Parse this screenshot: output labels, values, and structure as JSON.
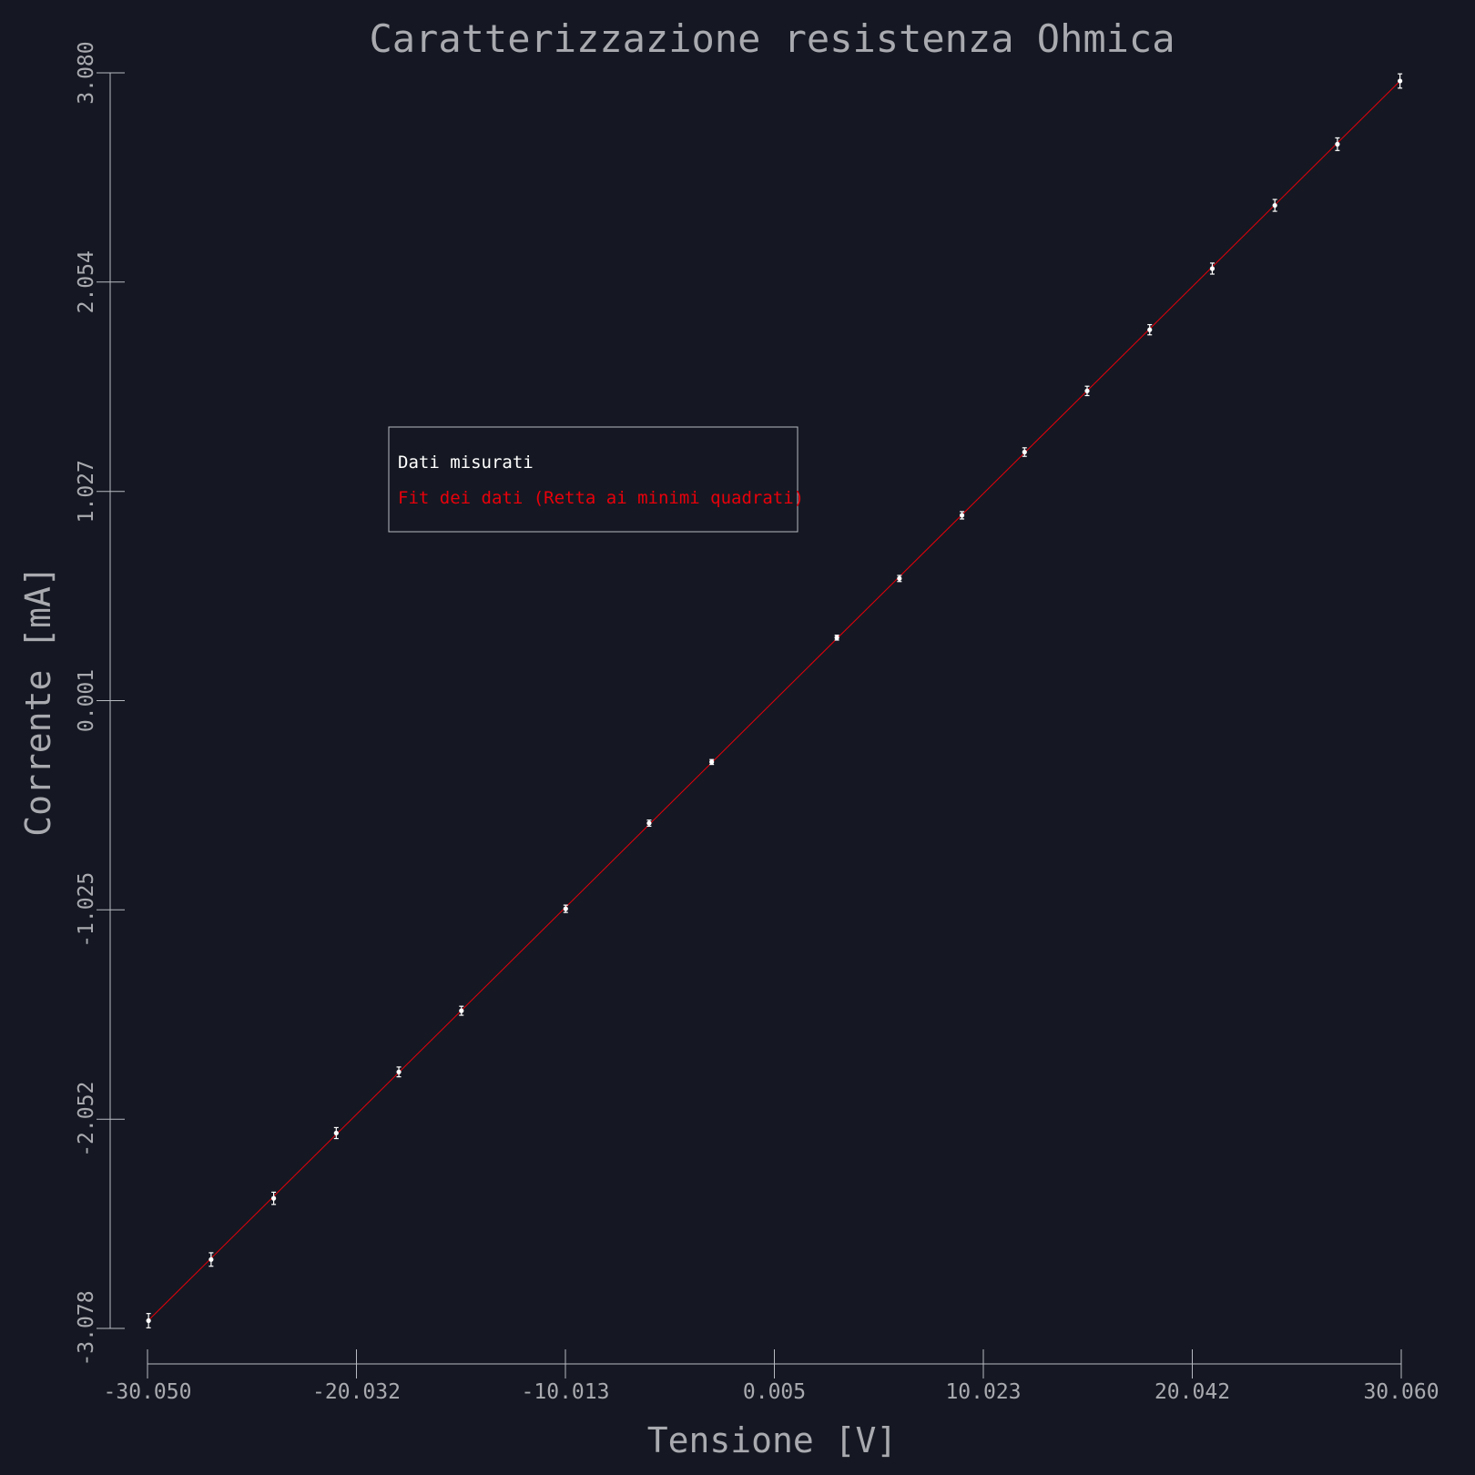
{
  "chart_data": {
    "type": "scatter",
    "title": "Caratterizzazione resistenza Ohmica",
    "xlabel": "Tensione [V]",
    "ylabel": "Corrente [mA]",
    "xlim": [
      -30.05,
      30.06
    ],
    "ylim": [
      -3.078,
      3.08
    ],
    "x_ticks": [
      -30.05,
      -20.032,
      -10.013,
      0.005,
      10.023,
      20.042,
      30.06
    ],
    "x_tick_labels": [
      "-30.050",
      "-20.032",
      "-10.013",
      "0.005",
      "10.023",
      "20.042",
      "30.060"
    ],
    "y_ticks": [
      -3.078,
      -2.052,
      -1.025,
      0.001,
      1.027,
      2.054,
      3.08
    ],
    "y_tick_labels": [
      "-3.078",
      "-2.052",
      "-1.025",
      "0.001",
      "1.027",
      "2.054",
      "3.080"
    ],
    "grid": false,
    "legend_position": "upper-left",
    "series": [
      {
        "name": "Dati misurati",
        "color": "#ffffff",
        "style": "points-with-errorbars",
        "points": [
          {
            "x": -30.0,
            "y": -3.04,
            "err": 0.035
          },
          {
            "x": -27.0,
            "y": -2.74,
            "err": 0.033
          },
          {
            "x": -24.0,
            "y": -2.44,
            "err": 0.03
          },
          {
            "x": -21.0,
            "y": -2.12,
            "err": 0.027
          },
          {
            "x": -18.0,
            "y": -1.82,
            "err": 0.024
          },
          {
            "x": -15.0,
            "y": -1.52,
            "err": 0.022
          },
          {
            "x": -10.0,
            "y": -1.02,
            "err": 0.018
          },
          {
            "x": -6.0,
            "y": -0.6,
            "err": 0.015
          },
          {
            "x": -3.0,
            "y": -0.3,
            "err": 0.012
          },
          {
            "x": 3.0,
            "y": 0.31,
            "err": 0.012
          },
          {
            "x": 6.0,
            "y": 0.6,
            "err": 0.015
          },
          {
            "x": 9.0,
            "y": 0.91,
            "err": 0.018
          },
          {
            "x": 12.0,
            "y": 1.22,
            "err": 0.021
          },
          {
            "x": 15.0,
            "y": 1.52,
            "err": 0.023
          },
          {
            "x": 18.0,
            "y": 1.82,
            "err": 0.025
          },
          {
            "x": 21.0,
            "y": 2.12,
            "err": 0.027
          },
          {
            "x": 24.0,
            "y": 2.43,
            "err": 0.029
          },
          {
            "x": 27.0,
            "y": 2.73,
            "err": 0.031
          },
          {
            "x": 30.0,
            "y": 3.04,
            "err": 0.035
          }
        ]
      },
      {
        "name": "Fit dei dati (Retta ai minimi quadrati)",
        "color": "#e8000b",
        "style": "line",
        "slope": 0.1013,
        "intercept": 0.001,
        "x_range": [
          -30.0,
          30.0
        ]
      }
    ]
  }
}
